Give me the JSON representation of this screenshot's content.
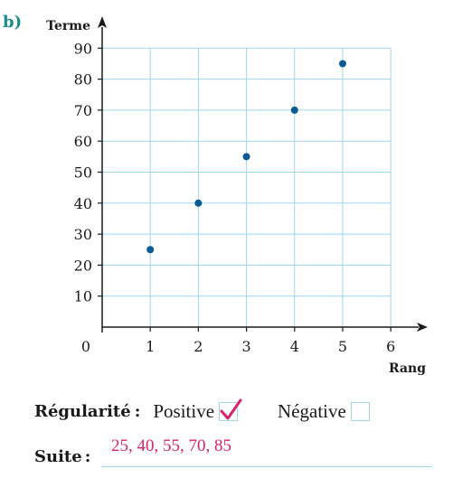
{
  "part_label": "b)",
  "chart_data": {
    "type": "scatter",
    "title": "",
    "ylabel": "Terme",
    "xlabel": "Rang",
    "origin_label": "0",
    "x_ticks": [
      1,
      2,
      3,
      4,
      5,
      6
    ],
    "y_ticks": [
      10,
      20,
      30,
      40,
      50,
      60,
      70,
      80,
      90
    ],
    "xlim": [
      0,
      6.6
    ],
    "ylim": [
      0,
      95
    ],
    "grid": true,
    "point_color": "#0a5a93",
    "grid_color": "#9fd6ee",
    "points": [
      {
        "x": 1,
        "y": 25
      },
      {
        "x": 2,
        "y": 40
      },
      {
        "x": 3,
        "y": 55
      },
      {
        "x": 4,
        "y": 70
      },
      {
        "x": 5,
        "y": 85
      }
    ]
  },
  "regularity": {
    "label": "Régularité",
    "colon": ":",
    "positive_label": "Positive",
    "positive_checked": true,
    "negative_label": "Négative",
    "negative_checked": false,
    "check_color": "#d6246e"
  },
  "suite": {
    "label": "Suite",
    "colon": ":",
    "answer": "25, 40, 55, 70, 85"
  }
}
